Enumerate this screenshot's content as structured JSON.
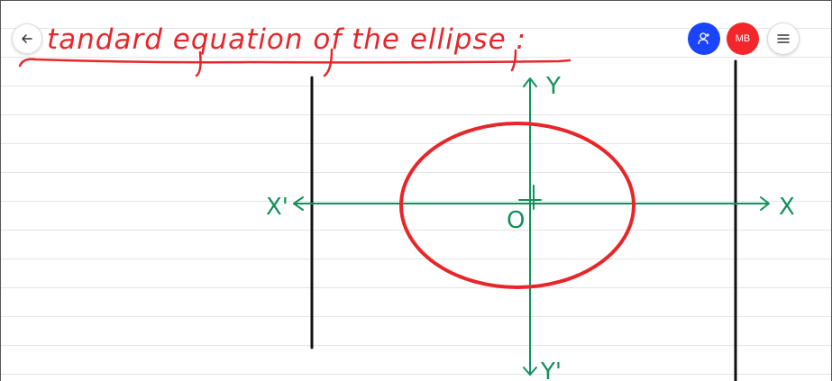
{
  "whiteboard": {
    "title_ink": "tandard equation of the ellipse :",
    "labels": {
      "x_positive": "X",
      "x_negative": "X'",
      "y_positive": "Y",
      "y_negative": "Y'",
      "origin": "O"
    }
  },
  "toolbar": {
    "back_icon": "arrow-left-icon",
    "share_icon": "add-user-icon",
    "avatar_initials": "MB",
    "menu_icon": "hamburger-menu-icon"
  },
  "colors": {
    "ink_red": "#e8262a",
    "ink_green": "#12915a",
    "ink_black": "#111111",
    "share_blue": "#1a44ff",
    "avatar_red": "#f2262b",
    "rule_line": "#e4e4e4"
  }
}
